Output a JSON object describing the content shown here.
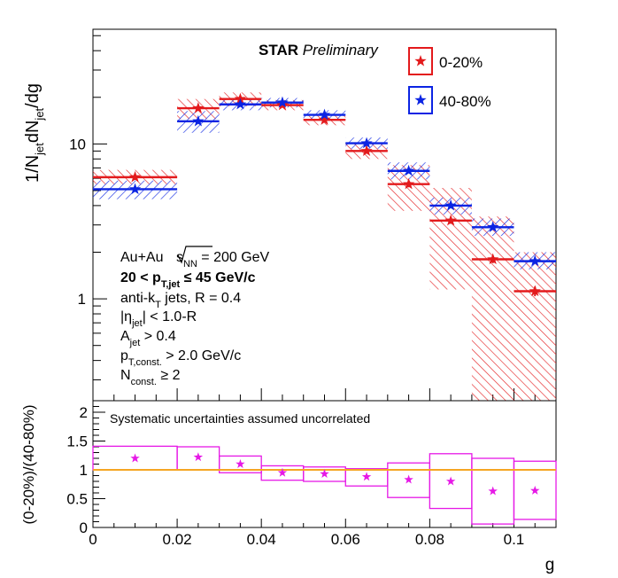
{
  "chart_data": [
    {
      "type": "step-histogram",
      "panel": "top",
      "title": "STAR Preliminary",
      "title_bold": "STAR",
      "title_italic": "Preliminary",
      "xlabel": "g",
      "ylabel": "1/N_jet dN_jet/dg",
      "yscale": "log",
      "xlim": [
        0,
        0.11
      ],
      "ylim": [
        0.22,
        55
      ],
      "ytick_labels": [
        {
          "v": 1,
          "label": "1"
        },
        {
          "v": 10,
          "label": "10"
        }
      ],
      "legend": {
        "position": "top-right",
        "entries": [
          "0-20%",
          "40-80%"
        ]
      },
      "series": [
        {
          "name": "0-20%",
          "color": "#e31a1c",
          "bin_edges": [
            0,
            0.02,
            0.03,
            0.04,
            0.05,
            0.06,
            0.07,
            0.08,
            0.09,
            0.1,
            0.11
          ],
          "points_x": [
            0.01,
            0.025,
            0.035,
            0.045,
            0.055,
            0.065,
            0.075,
            0.085,
            0.095,
            0.105
          ],
          "values": [
            6.1,
            17.0,
            19.5,
            17.8,
            14.3,
            9.0,
            5.5,
            3.2,
            1.8,
            1.12
          ],
          "stat_err": [
            0.25,
            0.6,
            0.6,
            0.6,
            0.5,
            0.35,
            0.25,
            0.15,
            0.1,
            0.08
          ],
          "sys_low": [
            5.5,
            14.5,
            17.5,
            16.5,
            13.2,
            8.0,
            3.7,
            1.15,
            0.22,
            0.22
          ],
          "sys_high": [
            6.8,
            19.5,
            21.5,
            19.2,
            15.5,
            10.1,
            7.3,
            5.2,
            3.4,
            2.0
          ]
        },
        {
          "name": "40-80%",
          "color": "#0b24e3",
          "bin_edges": [
            0,
            0.02,
            0.03,
            0.04,
            0.05,
            0.06,
            0.07,
            0.08,
            0.09,
            0.1,
            0.11
          ],
          "points_x": [
            0.01,
            0.025,
            0.035,
            0.045,
            0.055,
            0.065,
            0.075,
            0.085,
            0.095,
            0.105
          ],
          "values": [
            5.1,
            14.0,
            18.0,
            18.5,
            15.4,
            10.1,
            6.7,
            4.0,
            2.9,
            1.75
          ],
          "stat_err": [
            0.2,
            0.5,
            0.5,
            0.5,
            0.4,
            0.3,
            0.2,
            0.1,
            0.08,
            0.05
          ],
          "sys_low": [
            4.4,
            11.8,
            16.5,
            17.2,
            14.3,
            9.3,
            5.9,
            3.5,
            2.55,
            1.55
          ],
          "sys_high": [
            5.8,
            16.3,
            19.5,
            19.8,
            16.5,
            11.0,
            7.6,
            4.5,
            3.3,
            2.0
          ]
        }
      ],
      "annotations": [
        {
          "id": "collision",
          "parts": [
            "Au+Au ",
            "s",
            "NN",
            " = 200 GeV"
          ]
        },
        {
          "id": "pt_range",
          "parts": [
            "20 < p",
            "T,jet",
            " ≤ 45 GeV/c"
          ]
        },
        {
          "id": "algorithm",
          "parts": [
            "anti-k",
            "T",
            " jets, R = 0.4"
          ]
        },
        {
          "id": "eta_cut",
          "parts": [
            "|η",
            "jet",
            "| < 1.0-R"
          ]
        },
        {
          "id": "area_cut",
          "parts": [
            "A",
            "jet",
            " > 0.4"
          ]
        },
        {
          "id": "pt_const",
          "parts": [
            "p",
            "T,const.",
            " > 2.0 GeV/c"
          ]
        },
        {
          "id": "n_const",
          "parts": [
            "N",
            "const.",
            " ≥ 2"
          ]
        }
      ]
    },
    {
      "type": "ratio",
      "panel": "bottom",
      "xlabel": "g",
      "ylabel": "(0-20%)/(40-80%)",
      "xlim": [
        0,
        0.11
      ],
      "ylim": [
        0,
        2.2
      ],
      "xtick_labels": [
        {
          "v": 0,
          "label": "0"
        },
        {
          "v": 0.02,
          "label": "0.02"
        },
        {
          "v": 0.04,
          "label": "0.04"
        },
        {
          "v": 0.06,
          "label": "0.06"
        },
        {
          "v": 0.08,
          "label": "0.08"
        },
        {
          "v": 0.1,
          "label": "0.1"
        }
      ],
      "ytick_labels": [
        {
          "v": 0,
          "label": "0"
        },
        {
          "v": 0.5,
          "label": "0.5"
        },
        {
          "v": 1,
          "label": "1"
        },
        {
          "v": 1.5,
          "label": "1.5"
        },
        {
          "v": 2,
          "label": "2"
        }
      ],
      "reference_line": 1,
      "annotation": "Systematic uncertainties assumed uncorrelated",
      "annotation_color": "#e31a1c",
      "reference_color": "#f5a623",
      "color": "#e619e6",
      "bin_edges": [
        0,
        0.02,
        0.03,
        0.04,
        0.05,
        0.06,
        0.07,
        0.08,
        0.09,
        0.1,
        0.11
      ],
      "points_x": [
        0.01,
        0.025,
        0.035,
        0.045,
        0.055,
        0.065,
        0.075,
        0.085,
        0.095,
        0.105
      ],
      "values": [
        1.2,
        1.22,
        1.1,
        0.95,
        0.93,
        0.88,
        0.83,
        0.8,
        0.63,
        0.64
      ],
      "box_low": [
        1.0,
        1.0,
        0.95,
        0.82,
        0.8,
        0.72,
        0.52,
        0.33,
        0.06,
        0.14
      ],
      "box_high": [
        1.41,
        1.4,
        1.24,
        1.07,
        1.05,
        1.02,
        1.12,
        1.28,
        1.2,
        1.15
      ]
    }
  ]
}
